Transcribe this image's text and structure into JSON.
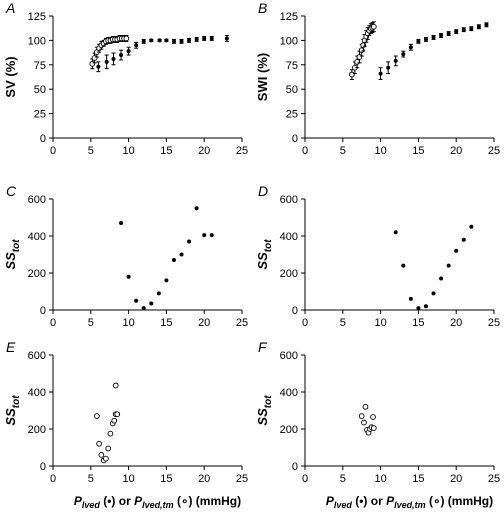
{
  "chart_data": [
    {
      "panel": "A",
      "type": "scatter",
      "ylabel": "SV (%)",
      "xlim": [
        0,
        25
      ],
      "ylim": [
        0,
        125
      ],
      "xticks": [
        0,
        5,
        10,
        15,
        20,
        25
      ],
      "yticks": [
        0,
        25,
        50,
        75,
        100,
        125
      ],
      "series": [
        {
          "marker": "filled",
          "points": [
            {
              "x": 6.0,
              "y": 73,
              "err": 5
            },
            {
              "x": 7.1,
              "y": 78,
              "err": 7
            },
            {
              "x": 8.0,
              "y": 81,
              "err": 6
            },
            {
              "x": 9.0,
              "y": 85,
              "err": 5
            },
            {
              "x": 10.0,
              "y": 89,
              "err": 4
            },
            {
              "x": 11.0,
              "y": 95,
              "err": 3
            },
            {
              "x": 12.0,
              "y": 99,
              "err": 2
            },
            {
              "x": 13.0,
              "y": 100,
              "err": 1
            },
            {
              "x": 14.1,
              "y": 100,
              "err": 1
            },
            {
              "x": 15.0,
              "y": 100,
              "err": 1
            },
            {
              "x": 16.0,
              "y": 99,
              "err": 2
            },
            {
              "x": 17.0,
              "y": 99,
              "err": 2
            },
            {
              "x": 18.0,
              "y": 100,
              "err": 2
            },
            {
              "x": 19.0,
              "y": 101,
              "err": 2
            },
            {
              "x": 20.0,
              "y": 102,
              "err": 2
            },
            {
              "x": 21.0,
              "y": 102,
              "err": 2
            },
            {
              "x": 23.0,
              "y": 102,
              "err": 3
            }
          ]
        },
        {
          "marker": "open",
          "points": [
            {
              "x": 5.2,
              "y": 76,
              "err": 5
            },
            {
              "x": 5.5,
              "y": 82,
              "err": 5
            },
            {
              "x": 5.8,
              "y": 88,
              "err": 5
            },
            {
              "x": 6.1,
              "y": 92,
              "err": 4
            },
            {
              "x": 6.4,
              "y": 95,
              "err": 4
            },
            {
              "x": 6.7,
              "y": 97,
              "err": 3
            },
            {
              "x": 7.0,
              "y": 99,
              "err": 3
            },
            {
              "x": 7.3,
              "y": 100,
              "err": 3
            },
            {
              "x": 7.6,
              "y": 100,
              "err": 3
            },
            {
              "x": 7.9,
              "y": 101,
              "err": 3
            },
            {
              "x": 8.2,
              "y": 101,
              "err": 3
            },
            {
              "x": 8.5,
              "y": 101,
              "err": 3
            },
            {
              "x": 8.8,
              "y": 102,
              "err": 3
            },
            {
              "x": 9.1,
              "y": 102,
              "err": 3
            },
            {
              "x": 9.4,
              "y": 102,
              "err": 3
            },
            {
              "x": 9.7,
              "y": 102,
              "err": 3
            }
          ]
        }
      ]
    },
    {
      "panel": "B",
      "type": "scatter",
      "ylabel": "SWI (%)",
      "xlim": [
        0,
        25
      ],
      "ylim": [
        0,
        125
      ],
      "xticks": [
        0,
        5,
        10,
        15,
        20,
        25
      ],
      "yticks": [
        0,
        25,
        50,
        75,
        100,
        125
      ],
      "series": [
        {
          "marker": "filled",
          "points": [
            {
              "x": 10.0,
              "y": 66,
              "err": 6
            },
            {
              "x": 11.0,
              "y": 72,
              "err": 6
            },
            {
              "x": 12.0,
              "y": 79,
              "err": 5
            },
            {
              "x": 13.0,
              "y": 86,
              "err": 3
            },
            {
              "x": 14.0,
              "y": 93,
              "err": 3
            },
            {
              "x": 15.0,
              "y": 99,
              "err": 2
            },
            {
              "x": 16.0,
              "y": 101,
              "err": 2
            },
            {
              "x": 17.0,
              "y": 103,
              "err": 2
            },
            {
              "x": 18.0,
              "y": 105,
              "err": 2
            },
            {
              "x": 19.0,
              "y": 107,
              "err": 2
            },
            {
              "x": 20.0,
              "y": 109,
              "err": 2
            },
            {
              "x": 21.0,
              "y": 111,
              "err": 2
            },
            {
              "x": 22.0,
              "y": 112,
              "err": 2
            },
            {
              "x": 23.0,
              "y": 114,
              "err": 2
            },
            {
              "x": 24.0,
              "y": 116,
              "err": 2
            }
          ]
        },
        {
          "marker": "open",
          "points": [
            {
              "x": 6.2,
              "y": 65,
              "err": 5
            },
            {
              "x": 6.6,
              "y": 72,
              "err": 6
            },
            {
              "x": 6.9,
              "y": 78,
              "err": 6
            },
            {
              "x": 7.2,
              "y": 83,
              "err": 6
            },
            {
              "x": 7.5,
              "y": 90,
              "err": 6
            },
            {
              "x": 7.7,
              "y": 95,
              "err": 6
            },
            {
              "x": 7.9,
              "y": 100,
              "err": 6
            },
            {
              "x": 8.1,
              "y": 104,
              "err": 6
            },
            {
              "x": 8.3,
              "y": 107,
              "err": 6
            },
            {
              "x": 8.5,
              "y": 110,
              "err": 5
            },
            {
              "x": 8.7,
              "y": 112,
              "err": 5
            },
            {
              "x": 8.9,
              "y": 113,
              "err": 5
            },
            {
              "x": 9.1,
              "y": 114,
              "err": 5
            }
          ]
        }
      ]
    },
    {
      "panel": "C",
      "type": "scatter",
      "ylabel": "SS",
      "ylabel_sub": "tot",
      "xlim": [
        0,
        25
      ],
      "ylim": [
        0,
        600
      ],
      "xticks": [
        0,
        5,
        10,
        15,
        20,
        25
      ],
      "yticks": [
        0,
        200,
        400,
        600
      ],
      "series": [
        {
          "marker": "filled",
          "points": [
            {
              "x": 9,
              "y": 470
            },
            {
              "x": 10,
              "y": 180
            },
            {
              "x": 11,
              "y": 50
            },
            {
              "x": 12,
              "y": 10
            },
            {
              "x": 13,
              "y": 35
            },
            {
              "x": 14,
              "y": 90
            },
            {
              "x": 15,
              "y": 160
            },
            {
              "x": 16,
              "y": 270
            },
            {
              "x": 17,
              "y": 300
            },
            {
              "x": 18,
              "y": 370
            },
            {
              "x": 19,
              "y": 550
            },
            {
              "x": 20,
              "y": 405
            },
            {
              "x": 21,
              "y": 405
            }
          ]
        }
      ]
    },
    {
      "panel": "D",
      "type": "scatter",
      "ylabel": "SS",
      "ylabel_sub": "tot",
      "xlim": [
        0,
        25
      ],
      "ylim": [
        0,
        600
      ],
      "xticks": [
        0,
        5,
        10,
        15,
        20,
        25
      ],
      "yticks": [
        0,
        200,
        400,
        600
      ],
      "series": [
        {
          "marker": "filled",
          "points": [
            {
              "x": 12,
              "y": 420
            },
            {
              "x": 13,
              "y": 240
            },
            {
              "x": 14,
              "y": 60
            },
            {
              "x": 15,
              "y": 10
            },
            {
              "x": 16,
              "y": 20
            },
            {
              "x": 17,
              "y": 90
            },
            {
              "x": 18,
              "y": 170
            },
            {
              "x": 19,
              "y": 240
            },
            {
              "x": 20,
              "y": 320
            },
            {
              "x": 21,
              "y": 380
            },
            {
              "x": 22,
              "y": 450
            }
          ]
        }
      ]
    },
    {
      "panel": "E",
      "type": "scatter",
      "ylabel": "SS",
      "ylabel_sub": "tot",
      "xlabel": "(mmHg)",
      "xlim": [
        0,
        25
      ],
      "ylim": [
        0,
        600
      ],
      "xticks": [
        0,
        5,
        10,
        15,
        20,
        25
      ],
      "yticks": [
        0,
        200,
        400,
        600
      ],
      "series": [
        {
          "marker": "open",
          "points": [
            {
              "x": 5.8,
              "y": 270
            },
            {
              "x": 6.1,
              "y": 120
            },
            {
              "x": 6.4,
              "y": 60
            },
            {
              "x": 6.7,
              "y": 30
            },
            {
              "x": 7.0,
              "y": 40
            },
            {
              "x": 7.3,
              "y": 95
            },
            {
              "x": 7.6,
              "y": 175
            },
            {
              "x": 7.9,
              "y": 230
            },
            {
              "x": 8.1,
              "y": 245
            },
            {
              "x": 8.3,
              "y": 280
            },
            {
              "x": 8.5,
              "y": 280
            },
            {
              "x": 8.3,
              "y": 435
            }
          ]
        }
      ]
    },
    {
      "panel": "F",
      "type": "scatter",
      "ylabel": "SS",
      "ylabel_sub": "tot",
      "xlabel": "(mmHg)",
      "xlim": [
        0,
        25
      ],
      "ylim": [
        0,
        600
      ],
      "xticks": [
        0,
        5,
        10,
        15,
        20,
        25
      ],
      "yticks": [
        0,
        200,
        400,
        600
      ],
      "series": [
        {
          "marker": "open",
          "points": [
            {
              "x": 7.5,
              "y": 270
            },
            {
              "x": 7.8,
              "y": 235
            },
            {
              "x": 8.0,
              "y": 320
            },
            {
              "x": 8.2,
              "y": 195
            },
            {
              "x": 8.4,
              "y": 180
            },
            {
              "x": 8.6,
              "y": 200
            },
            {
              "x": 8.8,
              "y": 210
            },
            {
              "x": 9.0,
              "y": 265
            },
            {
              "x": 9.1,
              "y": 205
            }
          ]
        }
      ]
    }
  ]
}
